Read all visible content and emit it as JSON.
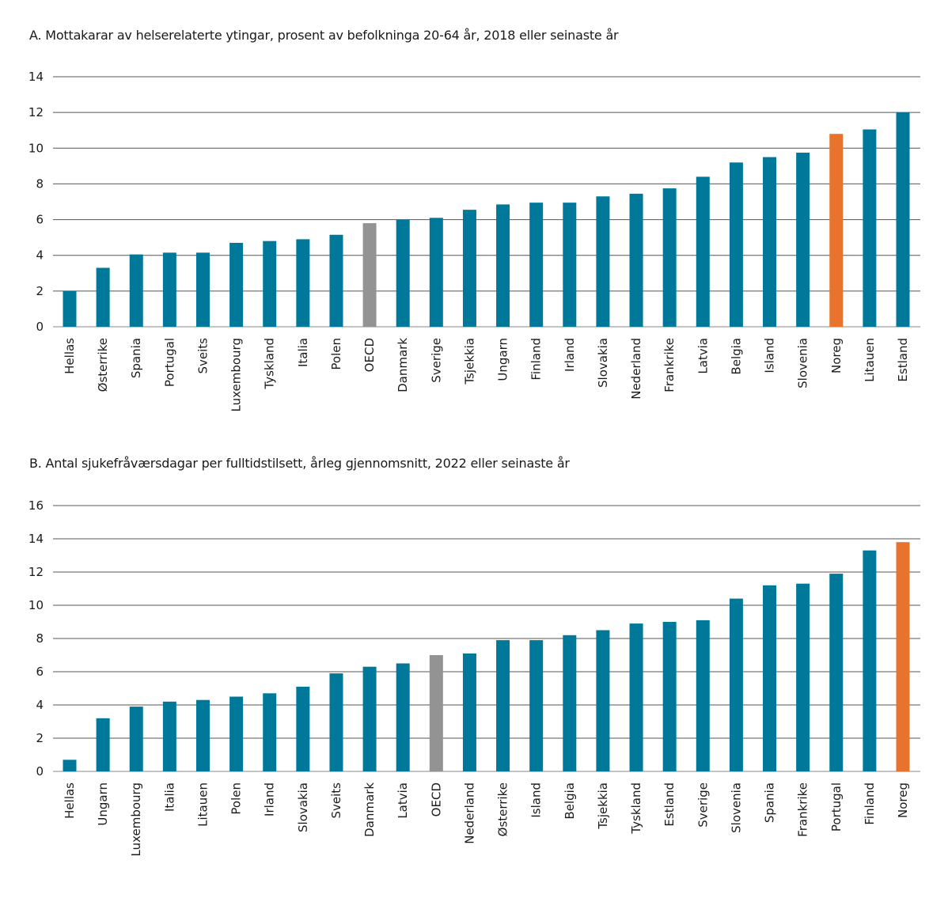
{
  "chart_data": [
    {
      "type": "bar",
      "title": "A. Mottakarar av helserelaterte ytingar, prosent av befolkninga 20-64 år, 2018 eller seinaste år",
      "ylim": [
        0,
        14
      ],
      "yticks": [
        0,
        2,
        4,
        6,
        8,
        10,
        12,
        14
      ],
      "grid": true,
      "categories": [
        "Hellas",
        "Østerrike",
        "Spania",
        "Portugal",
        "Sveits",
        "Luxembourg",
        "Tyskland",
        "Italia",
        "Polen",
        "OECD",
        "Danmark",
        "Sverige",
        "Tsjekkia",
        "Ungarn",
        "Finland",
        "Irland",
        "Slovakia",
        "Nederland",
        "Frankrike",
        "Latvia",
        "Belgia",
        "Island",
        "Slovenia",
        "Noreg",
        "Litauen",
        "Estland"
      ],
      "values": [
        2.0,
        3.3,
        4.05,
        4.15,
        4.15,
        4.7,
        4.8,
        4.9,
        5.15,
        5.8,
        6.0,
        6.1,
        6.55,
        6.85,
        6.95,
        6.95,
        7.3,
        7.45,
        7.75,
        8.4,
        9.2,
        9.5,
        9.75,
        10.8,
        11.05,
        12.0
      ],
      "colors": {
        "default": "#00789a",
        "OECD": "#939393",
        "Noreg": "#e8732c"
      }
    },
    {
      "type": "bar",
      "title": "B. Antal sjukefråværsdagar per fulltidstilsett, årleg gjennomsnitt, 2022 eller seinaste år",
      "ylim": [
        0,
        16
      ],
      "yticks": [
        0,
        2,
        4,
        6,
        8,
        10,
        12,
        14,
        16
      ],
      "grid": true,
      "categories": [
        "Hellas",
        "Ungarn",
        "Luxembourg",
        "Italia",
        "Litauen",
        "Polen",
        "Irland",
        "Slovakia",
        "Sveits",
        "Danmark",
        "Latvia",
        "OECD",
        "Nederland",
        "Østerrike",
        "Island",
        "Belgia",
        "Tsjekkia",
        "Tyskland",
        "Estland",
        "Sverige",
        "Slovenia",
        "Spania",
        "Frankrike",
        "Portugal",
        "Finland",
        "Noreg"
      ],
      "values": [
        0.7,
        3.2,
        3.9,
        4.2,
        4.3,
        4.5,
        4.7,
        5.1,
        5.9,
        6.3,
        6.5,
        7.0,
        7.1,
        7.9,
        7.9,
        8.2,
        8.5,
        8.9,
        9.0,
        9.1,
        10.4,
        11.2,
        11.3,
        11.9,
        13.3,
        13.8
      ],
      "colors": {
        "default": "#00789a",
        "OECD": "#939393",
        "Noreg": "#e8732c"
      }
    }
  ]
}
